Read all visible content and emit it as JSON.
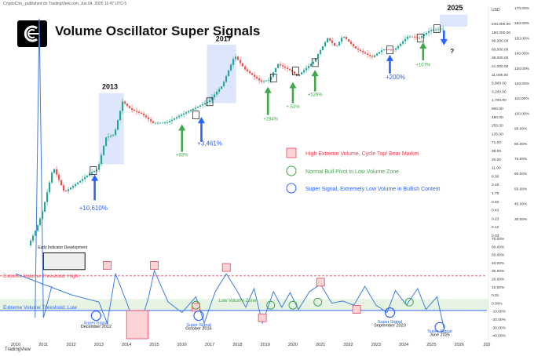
{
  "header": {
    "caption": "CryptoCon_ published on TradingView.com, Jun 04, 2025 11:47 UTC-5",
    "title": "Volume Oscillator Super Signals",
    "footer_brand": "TradingView"
  },
  "chart_data": [
    {
      "type": "line",
      "name": "price",
      "scale": "log",
      "x": [
        2010.5,
        2010.8,
        2011.0,
        2011.4,
        2011.8,
        2012.2,
        2012.8,
        2013.0,
        2013.3,
        2013.6,
        2013.9,
        2014.2,
        2014.6,
        2015.0,
        2015.5,
        2016.0,
        2016.5,
        2017.0,
        2017.5,
        2017.95,
        2018.3,
        2018.9,
        2019.2,
        2019.5,
        2020.0,
        2020.2,
        2020.8,
        2021.3,
        2021.6,
        2021.85,
        2022.3,
        2022.9,
        2023.3,
        2023.7,
        2024.2,
        2024.6,
        2025.0,
        2025.4
      ],
      "y": [
        0.1,
        0.3,
        0.8,
        15,
        3,
        5,
        11,
        13,
        100,
        120,
        1000,
        600,
        450,
        250,
        260,
        420,
        650,
        1000,
        2800,
        19000,
        8000,
        3500,
        4000,
        11000,
        7000,
        5000,
        13000,
        58000,
        32000,
        67000,
        30000,
        17000,
        28000,
        27000,
        65000,
        58000,
        95000,
        105000
      ],
      "y_ticks_left": [
        "2013",
        "2017",
        "2025"
      ],
      "y_ticks_right": [
        "240,000.00",
        "150,000.00",
        "96,000.00",
        "60,000.00",
        "38,000.00",
        "21,000.00",
        "11,000.00",
        "5,800.00",
        "3,200.00",
        "1,700.00",
        "900.00",
        "480.00",
        "255.00",
        "135.00",
        "71.00",
        "38.00",
        "20.00",
        "11.00",
        "6.30",
        "3.40",
        "1.70",
        "0.92",
        "0.43",
        "0.23",
        "0.12",
        "0.03"
      ],
      "y_ticks_pct": [
        "170.00%",
        "160.00%",
        "150.00%",
        "140.00%",
        "130.00%",
        "120.00%",
        "110.00%",
        "100.00%",
        "90.00%",
        "80.00%",
        "70.00%",
        "60.00%",
        "50.00%",
        "40.00%",
        "30.00%"
      ]
    },
    {
      "type": "line",
      "name": "volume oscillator",
      "x": [
        2010.0,
        2012.0,
        2013.0,
        2013.3,
        2013.6,
        2014.0,
        2014.4,
        2014.8,
        2015.0,
        2015.5,
        2016.0,
        2016.5,
        2016.8,
        2017.2,
        2017.6,
        2018.0,
        2018.3,
        2018.6,
        2018.9,
        2019.3,
        2019.6,
        2019.9,
        2020.2,
        2020.6,
        2021.0,
        2021.4,
        2021.8,
        2022.2,
        2022.6,
        2023.0,
        2023.4,
        2023.7,
        2024.1,
        2024.5,
        2024.8,
        2025.2,
        2025.45
      ],
      "y": [
        22,
        2,
        -5,
        -25,
        22,
        -5,
        -35,
        0,
        25,
        -5,
        -15,
        0,
        -25,
        5,
        22,
        5,
        -10,
        8,
        -25,
        5,
        -10,
        4,
        -12,
        5,
        12,
        -6,
        -4,
        -8,
        10,
        -8,
        -15,
        6,
        -8,
        8,
        -12,
        0,
        -30
      ],
      "ylim": [
        -40,
        70
      ],
      "y_ticks": [
        "70.00%",
        "60.00%",
        "50.00%",
        "40.00%",
        "30.00%",
        "20.00%",
        "10.00%",
        "0.01",
        "0.00%",
        "-10.00%",
        "-20.00%",
        "-30.00%",
        "-40.00%"
      ],
      "x_ticks": [
        "2010",
        "2011",
        "2012",
        "2013",
        "2014",
        "2015",
        "2016",
        "2017",
        "2018",
        "2019",
        "2020",
        "2021",
        "2022",
        "2023",
        "2024",
        "2025",
        "2026",
        "202"
      ]
    }
  ],
  "labels": {
    "year_2013": "2013",
    "year_2017": "2017",
    "year_2025": "2025",
    "gain_10610": "+10,610%",
    "gain_3461": "+3,461%",
    "gain_93": "+93%",
    "gain_284": "+284%",
    "gain_51": "+ 51%",
    "gain_526": "+526%",
    "gain_200": "+200%",
    "gain_107": "+107%",
    "question": "?",
    "early_dev": "Early Indicator Development",
    "threshold_high": "Extreme Volume Threshold: High",
    "threshold_low": "Extreme Volume Threshold: Low",
    "low_zone": "Low Volume Zone",
    "ss_dec2012_a": "Super Signal",
    "ss_dec2012_b": "December 2012",
    "ss_oct2016_a": "Super Signal",
    "ss_oct2016_b": "October 2016",
    "ss_sep2023_a": "Super Signal",
    "ss_sep2023_b": "September 2023",
    "ss_jun2025_a": "Super Signal",
    "ss_jun2025_b": "June 2025"
  },
  "legend": [
    {
      "text": "High Extreme Volume, Cycle Top/ Bear Market",
      "color": "#e8475a"
    },
    {
      "text": "Normal Bull Pivot in Low Volume Zone",
      "color": "#3fa84a"
    },
    {
      "text": "Super Signal, Extremely Low Volume in Bullish Context",
      "color": "#2962ff"
    }
  ],
  "colors": {
    "red": "#e8475a",
    "green": "#3fa84a",
    "blue": "#2962ff",
    "line_blue": "#3b7de0",
    "candle_up": "#26a69a",
    "candle_down": "#ef5350"
  }
}
